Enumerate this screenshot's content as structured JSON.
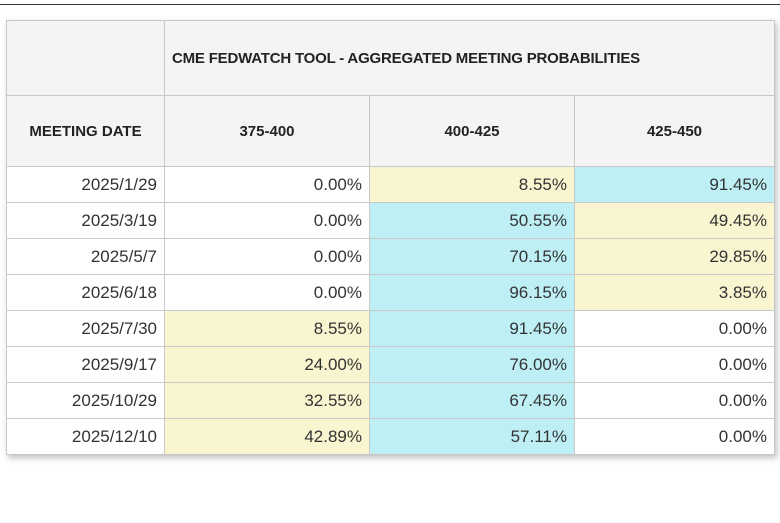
{
  "chart_data": {
    "type": "table",
    "title": "CME FEDWATCH TOOL - AGGREGATED MEETING PROBABILITIES",
    "row_header_label": "MEETING DATE",
    "columns": [
      "375-400",
      "400-425",
      "425-450"
    ],
    "rows": [
      {
        "date": "2025/1/29",
        "values": [
          "0.00%",
          "8.55%",
          "91.45%"
        ],
        "highlight": [
          "none",
          "yellow",
          "blue"
        ]
      },
      {
        "date": "2025/3/19",
        "values": [
          "0.00%",
          "50.55%",
          "49.45%"
        ],
        "highlight": [
          "none",
          "blue",
          "yellow"
        ]
      },
      {
        "date": "2025/5/7",
        "values": [
          "0.00%",
          "70.15%",
          "29.85%"
        ],
        "highlight": [
          "none",
          "blue",
          "yellow"
        ]
      },
      {
        "date": "2025/6/18",
        "values": [
          "0.00%",
          "96.15%",
          "3.85%"
        ],
        "highlight": [
          "none",
          "blue",
          "yellow"
        ]
      },
      {
        "date": "2025/7/30",
        "values": [
          "8.55%",
          "91.45%",
          "0.00%"
        ],
        "highlight": [
          "yellow",
          "blue",
          "none"
        ]
      },
      {
        "date": "2025/9/17",
        "values": [
          "24.00%",
          "76.00%",
          "0.00%"
        ],
        "highlight": [
          "yellow",
          "blue",
          "none"
        ]
      },
      {
        "date": "2025/10/29",
        "values": [
          "32.55%",
          "67.45%",
          "0.00%"
        ],
        "highlight": [
          "yellow",
          "blue",
          "none"
        ]
      },
      {
        "date": "2025/12/10",
        "values": [
          "42.89%",
          "57.11%",
          "0.00%"
        ],
        "highlight": [
          "yellow",
          "blue",
          "none"
        ]
      }
    ]
  },
  "colors": {
    "yellow": "#f8f5d0",
    "blue": "#bdeff4",
    "none": "#ffffff",
    "header_bg": "#f4f4f4",
    "border": "#c8c8c8"
  }
}
